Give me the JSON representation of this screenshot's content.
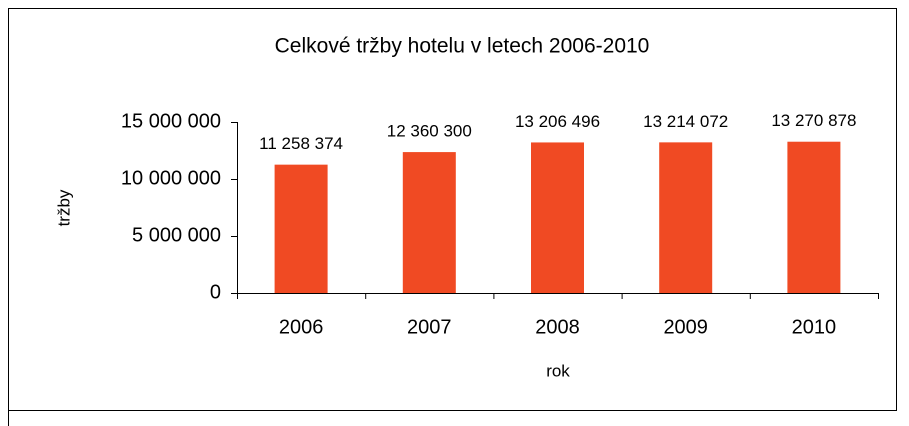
{
  "chart_data": {
    "type": "bar",
    "title": "Celkové tržby hotelu v letech 2006-2010",
    "x_label": "rok",
    "y_label": "tržby",
    "categories": [
      "2006",
      "2007",
      "2008",
      "2009",
      "2010"
    ],
    "values": [
      11258374,
      12360300,
      13206496,
      13214072,
      13270878
    ],
    "value_labels": [
      "11 258 374",
      "12 360 300",
      "13 206 496",
      "13 214 072",
      "13 270 878"
    ],
    "color": "#f04a23",
    "ylim": [
      0,
      15000000
    ],
    "yticks": [
      0,
      {
        "value": 5000000,
        "label": "5 000 000"
      },
      {
        "value": 10000000,
        "label": "10 000 000"
      },
      {
        "value": 15000000,
        "label": "15 000 000"
      }
    ],
    "grid": false
  }
}
